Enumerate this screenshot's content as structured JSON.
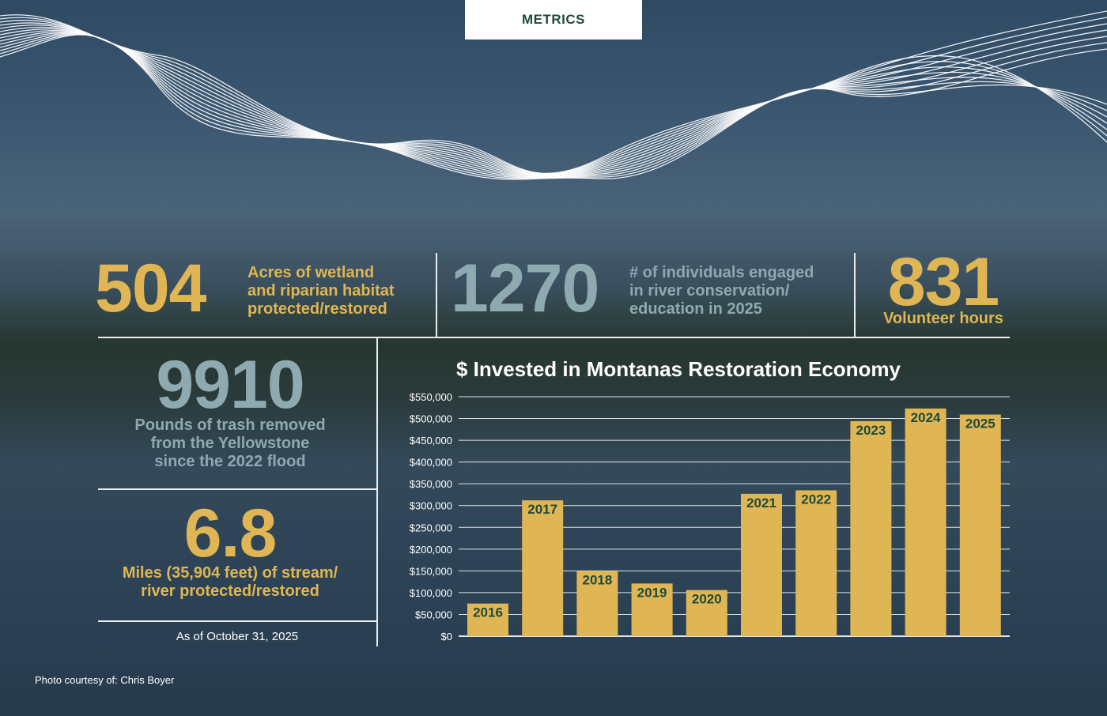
{
  "header": {
    "tab_label": "METRICS"
  },
  "metrics": {
    "acres": {
      "value": "504",
      "label_lines": [
        "Acres of wetland",
        "and riparian habitat",
        "protected/restored"
      ]
    },
    "individuals": {
      "value": "1270",
      "label_lines": [
        "# of individuals engaged",
        "in river conservation/",
        "education in 2025"
      ]
    },
    "volunteer": {
      "value": "831",
      "label": "Volunteer hours"
    },
    "trash": {
      "value": "9910",
      "label_lines": [
        "Pounds of trash removed",
        "from the Yellowstone",
        "since the 2022 flood"
      ]
    },
    "miles": {
      "value": "6.8",
      "label_lines": [
        "Miles (35,904 feet) of stream/",
        "river protected/restored"
      ]
    },
    "as_of": "As of October 31, 2025"
  },
  "credit": "Photo courtesy of: Chris Boyer",
  "colors": {
    "gold": "#dfb653",
    "slate": "#8fa9b0",
    "dark_green": "#1f4a3a",
    "bar": "#dfb653",
    "bar_label": "#1f4a3a"
  },
  "chart_data": {
    "type": "bar",
    "title": "$ Invested in Montanas Restoration Economy",
    "categories": [
      "2016",
      "2017",
      "2018",
      "2019",
      "2020",
      "2021",
      "2022",
      "2023",
      "2024",
      "2025"
    ],
    "values": [
      75000,
      312000,
      150000,
      121000,
      106000,
      327000,
      335000,
      494000,
      523000,
      509000
    ],
    "ylim": [
      0,
      550000
    ],
    "yticks": [
      0,
      50000,
      100000,
      150000,
      200000,
      250000,
      300000,
      350000,
      400000,
      450000,
      500000,
      550000
    ],
    "ytick_labels": [
      "$0",
      "$50,000",
      "$100,000",
      "$150,000",
      "$200,000",
      "$250,000",
      "$300,000",
      "$350,000",
      "$400,000",
      "$450,000",
      "$500,000",
      "$550,000"
    ],
    "grid": true,
    "data_labels": "year inside top of bar"
  }
}
